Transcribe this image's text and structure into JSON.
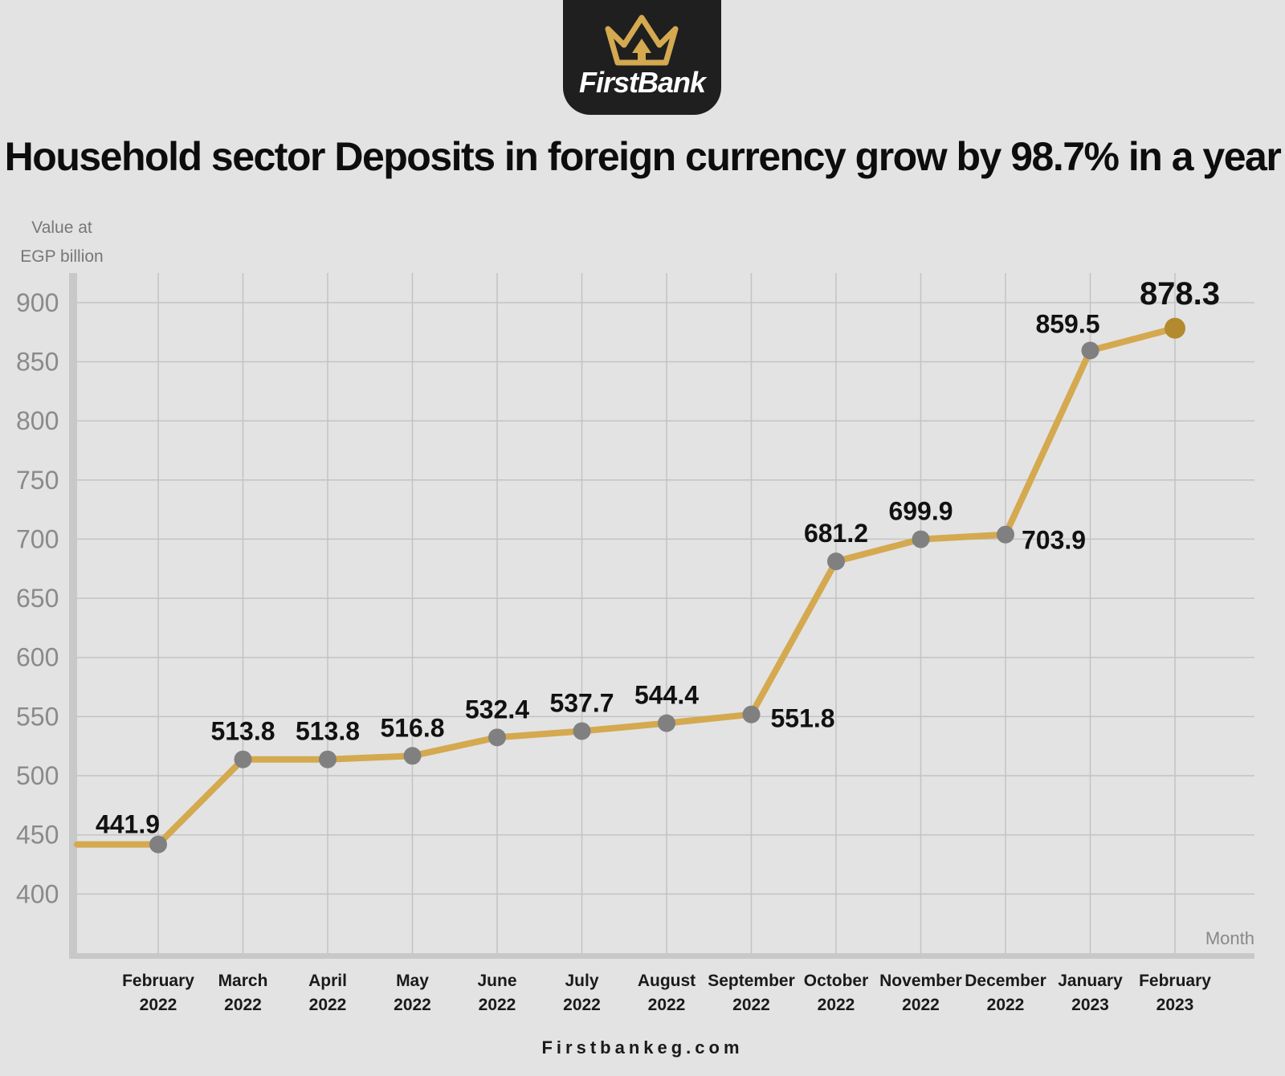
{
  "brand": {
    "name": "FirstBank",
    "website": "Firstbankeg.com",
    "gold": "#d4a94f",
    "dark": "#1f1f1f"
  },
  "chart_data": {
    "type": "line",
    "title": "Household sector Deposits in foreign currency grow by 98.7% in a year",
    "ylabel": "Value at EGP billion",
    "xlabel": "Month",
    "ylim": [
      350,
      925
    ],
    "yticks": [
      400,
      450,
      500,
      550,
      600,
      650,
      700,
      750,
      800,
      850,
      900
    ],
    "grid": true,
    "categories": [
      [
        "February",
        "2022"
      ],
      [
        "March",
        "2022"
      ],
      [
        "April",
        "2022"
      ],
      [
        "May",
        "2022"
      ],
      [
        "June",
        "2022"
      ],
      [
        "July",
        "2022"
      ],
      [
        "August",
        "2022"
      ],
      [
        "September",
        "2022"
      ],
      [
        "October",
        "2022"
      ],
      [
        "November",
        "2022"
      ],
      [
        "December",
        "2022"
      ],
      [
        "January",
        "2023"
      ],
      [
        "February",
        "2023"
      ]
    ],
    "series": [
      {
        "values": [
          441.9,
          513.8,
          513.8,
          516.8,
          532.4,
          537.7,
          544.4,
          551.8,
          681.2,
          699.9,
          703.9,
          859.5,
          878.3
        ],
        "labels": [
          "441.9",
          "513.8",
          "513.8",
          "516.8",
          "532.4",
          "537.7",
          "544.4",
          "551.8",
          "681.2",
          "699.9",
          "703.9",
          "859.5",
          "878.3"
        ],
        "line_color": "#d4a94f",
        "marker_color": "#808080",
        "highlight_color": "#b48a2e"
      }
    ]
  }
}
